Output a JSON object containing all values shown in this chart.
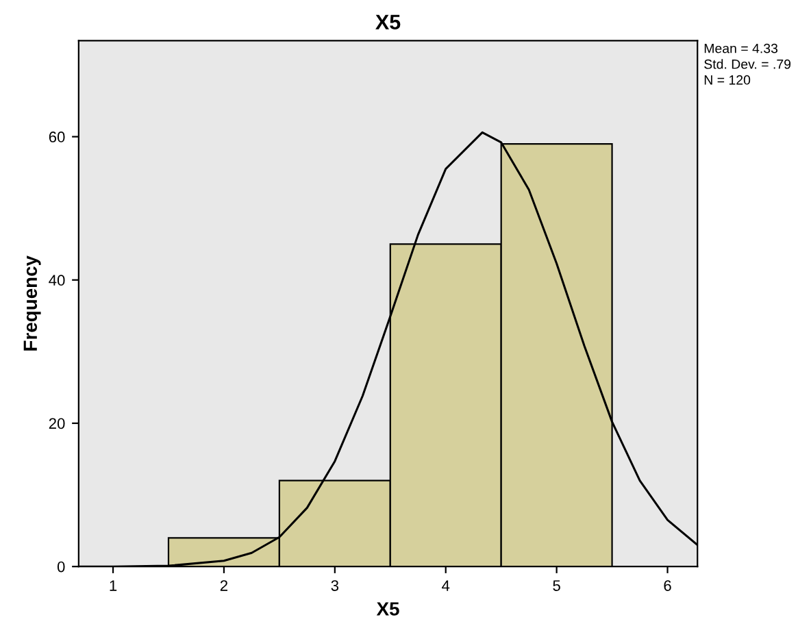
{
  "chart_data": {
    "type": "histogram",
    "title": "X5",
    "xlabel": "X5",
    "ylabel": "Frequency",
    "bins": [
      1.5,
      2.5,
      3.5,
      4.5,
      5.5
    ],
    "series": [
      {
        "type": "histogram",
        "color": "#d6d09c",
        "values": [
          4,
          12,
          45,
          59
        ]
      },
      {
        "type": "line",
        "color": "#000000",
        "x": [
          0.69,
          1,
          1.5,
          2,
          2.25,
          2.5,
          2.75,
          3,
          3.25,
          3.5,
          3.75,
          4,
          4.33,
          4.5,
          4.75,
          5,
          5.25,
          5.5,
          5.75,
          6,
          6.27
        ],
        "values": [
          0,
          0,
          0.1,
          0.8,
          1.9,
          4.1,
          8.2,
          14.7,
          23.8,
          34.9,
          46.3,
          55.5,
          60.6,
          59.2,
          52.6,
          42.3,
          30.8,
          20.2,
          12.0,
          6.5,
          3.0
        ]
      }
    ],
    "xlim": [
      0.69,
      6.27
    ],
    "ylim": [
      0,
      73.4
    ],
    "xticks": [
      1,
      2,
      3,
      4,
      5,
      6
    ],
    "yticks": [
      0,
      20,
      40,
      60
    ],
    "annotations": [
      "Mean = 4.33",
      "Std. Dev. = .79",
      "N = 120"
    ],
    "grid": false,
    "legend": false
  }
}
